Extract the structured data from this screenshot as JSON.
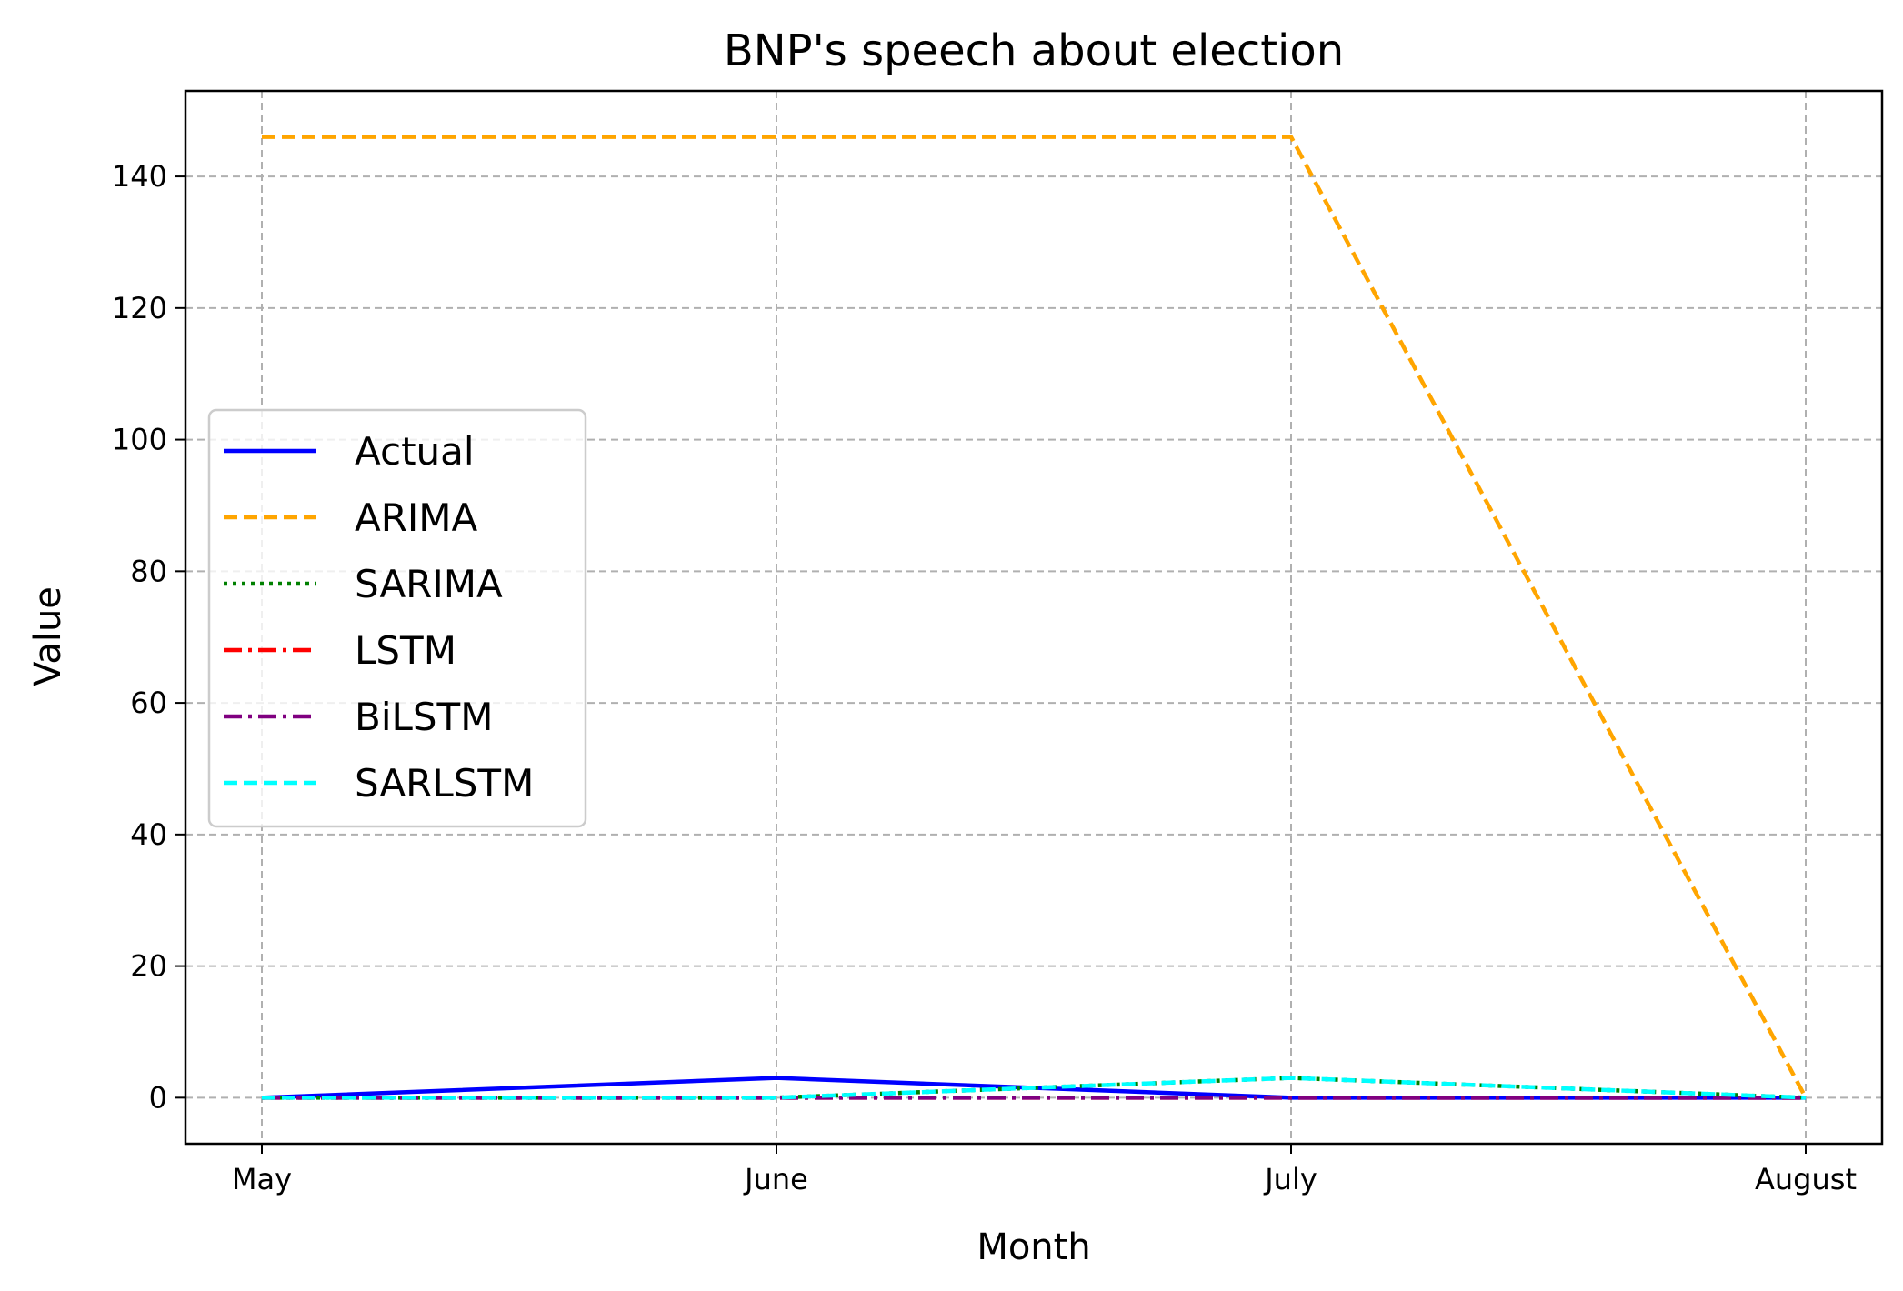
{
  "chart_data": {
    "type": "line",
    "title": "BNP's speech about election",
    "xlabel": "Month",
    "ylabel": "Value",
    "categories": [
      "May",
      "June",
      "July",
      "August"
    ],
    "ylim": [
      -7,
      153
    ],
    "yticks": [
      0,
      20,
      40,
      60,
      80,
      100,
      120,
      140
    ],
    "grid": true,
    "legend_position": "center-left",
    "series": [
      {
        "name": "Actual",
        "values": [
          0,
          3,
          0,
          0
        ],
        "color": "#0000ff",
        "style": "solid"
      },
      {
        "name": "ARIMA",
        "values": [
          146,
          146,
          146,
          0
        ],
        "color": "#ffa500",
        "style": "dashed"
      },
      {
        "name": "SARIMA",
        "values": [
          0,
          0,
          3,
          0
        ],
        "color": "#008000",
        "style": "dotted"
      },
      {
        "name": "LSTM",
        "values": [
          0,
          0,
          0,
          0
        ],
        "color": "#ff0000",
        "style": "dashdot"
      },
      {
        "name": "BiLSTM",
        "values": [
          0,
          0,
          0,
          0
        ],
        "color": "#800080",
        "style": "dashdot"
      },
      {
        "name": "SARLSTM",
        "values": [
          0,
          0,
          3,
          0
        ],
        "color": "#00ffff",
        "style": "dashed"
      }
    ]
  }
}
